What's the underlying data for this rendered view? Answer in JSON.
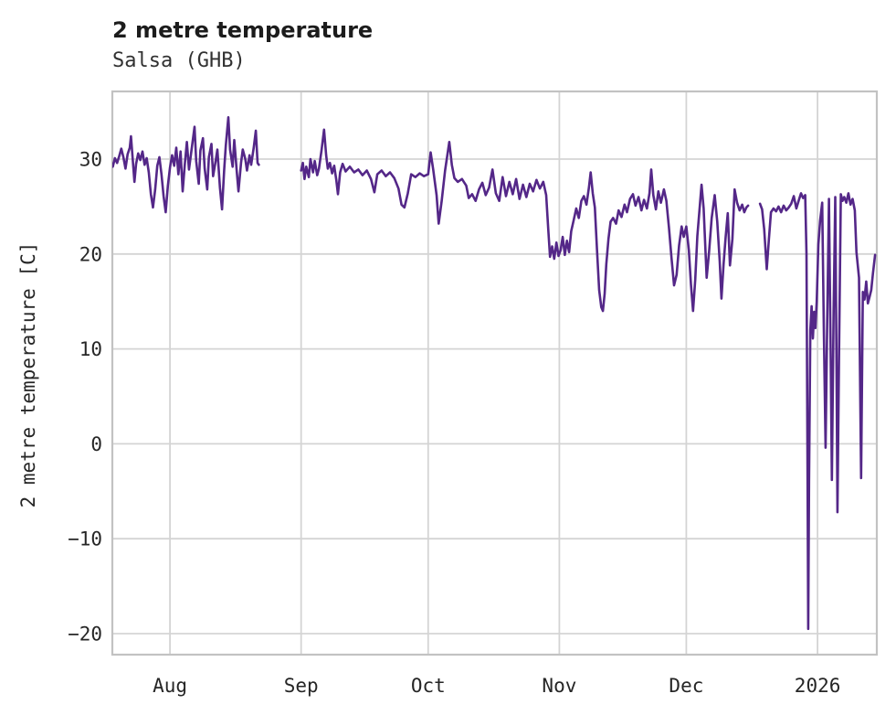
{
  "chart_data": {
    "type": "line",
    "title": "2 metre temperature",
    "subtitle": "Salsa (GHB)",
    "xlabel": "",
    "ylabel": "2 metre temperature [C]",
    "grid": true,
    "legend": "none",
    "line_color": "#542788",
    "x_axis": {
      "unit": "days since 2025-07-18",
      "start": "2025-07-18",
      "end": "2026-01-15",
      "day_span": [
        0,
        181
      ]
    },
    "ylim": [
      -22.2,
      37.1
    ],
    "y_ticks": [
      30,
      20,
      10,
      0,
      -10,
      -20
    ],
    "x_ticks": [
      {
        "label": "Aug",
        "day": 14
      },
      {
        "label": "Sep",
        "day": 45
      },
      {
        "label": "Oct",
        "day": 75
      },
      {
        "label": "Nov",
        "day": 106
      },
      {
        "label": "Dec",
        "day": 136
      },
      {
        "label": "2026",
        "day": 167
      }
    ],
    "gaps_note": "null temperature = missing data segment",
    "series": [
      {
        "name": "2 metre temperature",
        "points": [
          [
            0,
            29.8
          ],
          [
            0.5,
            29.2
          ],
          [
            1,
            30.1
          ],
          [
            1.5,
            29.6
          ],
          [
            2,
            30.3
          ],
          [
            2.5,
            31.1
          ],
          [
            3,
            30.2
          ],
          [
            3.5,
            29.0
          ],
          [
            4,
            30.5
          ],
          [
            4.5,
            31.2
          ],
          [
            4.8,
            32.4
          ],
          [
            5.2,
            30.0
          ],
          [
            5.6,
            27.6
          ],
          [
            6,
            29.5
          ],
          [
            6.5,
            30.6
          ],
          [
            7,
            29.9
          ],
          [
            7.5,
            30.8
          ],
          [
            8,
            29.4
          ],
          [
            8.5,
            30.1
          ],
          [
            9,
            28.6
          ],
          [
            9.5,
            26.3
          ],
          [
            10,
            24.9
          ],
          [
            10.5,
            26.8
          ],
          [
            11,
            29.3
          ],
          [
            11.5,
            30.2
          ],
          [
            12,
            28.4
          ],
          [
            12.5,
            26.1
          ],
          [
            13,
            24.4
          ],
          [
            13.5,
            27.2
          ],
          [
            14,
            29.1
          ],
          [
            14.5,
            30.4
          ],
          [
            15,
            29.3
          ],
          [
            15.5,
            31.2
          ],
          [
            16,
            28.4
          ],
          [
            16.5,
            30.8
          ],
          [
            17,
            26.6
          ],
          [
            17.5,
            29.4
          ],
          [
            18,
            31.8
          ],
          [
            18.5,
            28.9
          ],
          [
            19,
            30.6
          ],
          [
            19.8,
            33.4
          ],
          [
            20.2,
            29.8
          ],
          [
            20.8,
            27.4
          ],
          [
            21.2,
            30.9
          ],
          [
            21.8,
            32.2
          ],
          [
            22.2,
            29.0
          ],
          [
            22.8,
            26.8
          ],
          [
            23.2,
            30.2
          ],
          [
            23.8,
            31.6
          ],
          [
            24.2,
            28.2
          ],
          [
            24.8,
            29.8
          ],
          [
            25.2,
            31.0
          ],
          [
            25.8,
            27.0
          ],
          [
            26.3,
            24.7
          ],
          [
            26.8,
            28.8
          ],
          [
            27.2,
            31.4
          ],
          [
            27.8,
            34.4
          ],
          [
            28.2,
            31.0
          ],
          [
            28.8,
            29.2
          ],
          [
            29.2,
            32.0
          ],
          [
            29.8,
            28.6
          ],
          [
            30.2,
            26.6
          ],
          [
            30.8,
            29.6
          ],
          [
            31.2,
            31.0
          ],
          [
            31.8,
            30.0
          ],
          [
            32.2,
            28.8
          ],
          [
            32.8,
            30.4
          ],
          [
            33.2,
            29.4
          ],
          [
            33.8,
            31.2
          ],
          [
            34.3,
            33.0
          ],
          [
            34.7,
            29.6
          ],
          [
            35,
            29.4
          ],
          [
            36,
            null
          ],
          [
            45,
            28.8
          ],
          [
            45.4,
            29.6
          ],
          [
            45.8,
            27.9
          ],
          [
            46.2,
            29.2
          ],
          [
            46.8,
            28.1
          ],
          [
            47.2,
            30.0
          ],
          [
            47.8,
            28.6
          ],
          [
            48.2,
            29.8
          ],
          [
            48.8,
            28.3
          ],
          [
            49.2,
            29.0
          ],
          [
            49.8,
            30.9
          ],
          [
            50.4,
            33.1
          ],
          [
            50.9,
            30.4
          ],
          [
            51.3,
            29.0
          ],
          [
            51.8,
            29.6
          ],
          [
            52.3,
            28.5
          ],
          [
            52.8,
            29.3
          ],
          [
            53.3,
            27.8
          ],
          [
            53.7,
            26.3
          ],
          [
            54.2,
            28.6
          ],
          [
            54.8,
            29.5
          ],
          [
            55.5,
            28.7
          ],
          [
            56.5,
            29.2
          ],
          [
            57.5,
            28.6
          ],
          [
            58.5,
            28.9
          ],
          [
            59.5,
            28.3
          ],
          [
            60.5,
            28.8
          ],
          [
            61.5,
            27.9
          ],
          [
            62.3,
            26.5
          ],
          [
            63,
            28.4
          ],
          [
            64,
            28.8
          ],
          [
            65,
            28.2
          ],
          [
            66,
            28.6
          ],
          [
            67,
            28.0
          ],
          [
            68,
            26.9
          ],
          [
            68.7,
            25.2
          ],
          [
            69.4,
            24.9
          ],
          [
            70.2,
            26.4
          ],
          [
            71,
            28.4
          ],
          [
            72,
            28.1
          ],
          [
            73,
            28.5
          ],
          [
            74,
            28.2
          ],
          [
            75,
            28.4
          ],
          [
            75.6,
            30.7
          ],
          [
            76.2,
            28.9
          ],
          [
            77,
            26.2
          ],
          [
            77.5,
            23.2
          ],
          [
            78.2,
            25.6
          ],
          [
            79,
            28.8
          ],
          [
            80,
            31.8
          ],
          [
            80.6,
            29.4
          ],
          [
            81.2,
            28.0
          ],
          [
            82,
            27.6
          ],
          [
            83,
            27.9
          ],
          [
            84,
            27.2
          ],
          [
            84.6,
            25.9
          ],
          [
            85.4,
            26.3
          ],
          [
            86.2,
            25.6
          ],
          [
            87,
            26.8
          ],
          [
            87.8,
            27.5
          ],
          [
            88.6,
            26.2
          ],
          [
            89.4,
            27.0
          ],
          [
            90.2,
            28.9
          ],
          [
            91,
            26.4
          ],
          [
            91.8,
            25.6
          ],
          [
            92.6,
            28.1
          ],
          [
            93.4,
            26.1
          ],
          [
            94.2,
            27.6
          ],
          [
            95,
            26.3
          ],
          [
            95.8,
            27.9
          ],
          [
            96.6,
            25.8
          ],
          [
            97.4,
            27.3
          ],
          [
            98.2,
            26.0
          ],
          [
            99,
            27.4
          ],
          [
            99.8,
            26.6
          ],
          [
            100.6,
            27.8
          ],
          [
            101.4,
            26.9
          ],
          [
            102.2,
            27.6
          ],
          [
            102.9,
            26.2
          ],
          [
            103.4,
            22.4
          ],
          [
            103.8,
            19.7
          ],
          [
            104.3,
            20.8
          ],
          [
            104.8,
            19.5
          ],
          [
            105.3,
            21.2
          ],
          [
            105.8,
            19.8
          ],
          [
            106.3,
            20.4
          ],
          [
            106.8,
            21.8
          ],
          [
            107.3,
            19.9
          ],
          [
            107.8,
            21.4
          ],
          [
            108.3,
            20.2
          ],
          [
            108.8,
            22.4
          ],
          [
            109.4,
            23.6
          ],
          [
            110,
            24.8
          ],
          [
            110.6,
            23.8
          ],
          [
            111.2,
            25.6
          ],
          [
            111.8,
            26.1
          ],
          [
            112.4,
            25.2
          ],
          [
            113,
            27.0
          ],
          [
            113.4,
            28.6
          ],
          [
            113.9,
            26.4
          ],
          [
            114.4,
            24.9
          ],
          [
            114.9,
            20.5
          ],
          [
            115.4,
            16.2
          ],
          [
            115.9,
            14.4
          ],
          [
            116.3,
            14.0
          ],
          [
            116.7,
            15.8
          ],
          [
            117.1,
            18.9
          ],
          [
            117.6,
            21.6
          ],
          [
            118.1,
            23.4
          ],
          [
            118.7,
            23.8
          ],
          [
            119.4,
            23.2
          ],
          [
            120,
            24.6
          ],
          [
            120.7,
            23.9
          ],
          [
            121.4,
            25.2
          ],
          [
            122,
            24.4
          ],
          [
            122.7,
            25.8
          ],
          [
            123.4,
            26.3
          ],
          [
            124,
            25.1
          ],
          [
            124.7,
            26.0
          ],
          [
            125.4,
            24.6
          ],
          [
            126,
            25.7
          ],
          [
            126.7,
            24.8
          ],
          [
            127.3,
            26.4
          ],
          [
            127.7,
            28.9
          ],
          [
            128.2,
            26.2
          ],
          [
            128.8,
            24.7
          ],
          [
            129.4,
            26.6
          ],
          [
            130,
            25.4
          ],
          [
            130.7,
            26.8
          ],
          [
            131.3,
            25.6
          ],
          [
            131.9,
            22.8
          ],
          [
            132.5,
            19.6
          ],
          [
            133.1,
            16.7
          ],
          [
            133.7,
            17.8
          ],
          [
            134.3,
            20.9
          ],
          [
            134.9,
            22.9
          ],
          [
            135.4,
            21.8
          ],
          [
            136,
            22.9
          ],
          [
            136.6,
            20.4
          ],
          [
            137.1,
            16.8
          ],
          [
            137.6,
            14.0
          ],
          [
            138.1,
            17.3
          ],
          [
            138.6,
            21.9
          ],
          [
            139.1,
            24.6
          ],
          [
            139.6,
            27.3
          ],
          [
            140.1,
            24.8
          ],
          [
            140.8,
            17.5
          ],
          [
            141.4,
            20.3
          ],
          [
            142,
            23.8
          ],
          [
            142.7,
            26.2
          ],
          [
            143.3,
            23.4
          ],
          [
            143.9,
            19.2
          ],
          [
            144.3,
            15.3
          ],
          [
            144.8,
            18.9
          ],
          [
            145.3,
            21.8
          ],
          [
            145.8,
            24.3
          ],
          [
            146.3,
            18.8
          ],
          [
            146.9,
            21.6
          ],
          [
            147.4,
            26.8
          ],
          [
            148,
            25.4
          ],
          [
            148.6,
            24.6
          ],
          [
            149.2,
            25.2
          ],
          [
            149.7,
            24.4
          ],
          [
            150.2,
            24.9
          ],
          [
            150.6,
            25.1
          ],
          [
            151.5,
            null
          ],
          [
            153.4,
            25.3
          ],
          [
            153.9,
            24.7
          ],
          [
            154.4,
            22.6
          ],
          [
            155,
            18.4
          ],
          [
            155.5,
            21.5
          ],
          [
            156,
            24.4
          ],
          [
            156.6,
            24.8
          ],
          [
            157.2,
            24.5
          ],
          [
            157.8,
            25.0
          ],
          [
            158.4,
            24.4
          ],
          [
            159,
            25.1
          ],
          [
            159.6,
            24.6
          ],
          [
            160.2,
            24.9
          ],
          [
            160.8,
            25.3
          ],
          [
            161.4,
            26.1
          ],
          [
            162,
            24.8
          ],
          [
            162.6,
            25.7
          ],
          [
            163.1,
            26.4
          ],
          [
            163.6,
            25.9
          ],
          [
            164.1,
            26.2
          ],
          [
            164.4,
            20.0
          ],
          [
            164.6,
            0.0
          ],
          [
            164.8,
            -19.5
          ],
          [
            165,
            -4.0
          ],
          [
            165.3,
            12.0
          ],
          [
            165.6,
            14.5
          ],
          [
            165.9,
            11.1
          ],
          [
            166.2,
            13.9
          ],
          [
            166.5,
            12.2
          ],
          [
            166.8,
            15.0
          ],
          [
            167.2,
            21.0
          ],
          [
            167.6,
            23.5
          ],
          [
            168.1,
            25.4
          ],
          [
            168.5,
            12.0
          ],
          [
            168.9,
            -0.4
          ],
          [
            169.3,
            13.0
          ],
          [
            169.7,
            25.8
          ],
          [
            170.1,
            10.0
          ],
          [
            170.4,
            -3.8
          ],
          [
            170.8,
            14.0
          ],
          [
            171.2,
            26.0
          ],
          [
            171.5,
            8.0
          ],
          [
            171.7,
            -7.2
          ],
          [
            172.1,
            10.0
          ],
          [
            172.5,
            26.3
          ],
          [
            172.9,
            25.6
          ],
          [
            173.3,
            26.0
          ],
          [
            173.8,
            25.4
          ],
          [
            174.3,
            26.4
          ],
          [
            174.8,
            25.2
          ],
          [
            175.3,
            25.8
          ],
          [
            175.8,
            24.6
          ],
          [
            176.2,
            20.2
          ],
          [
            176.8,
            17.5
          ],
          [
            177.3,
            -3.6
          ],
          [
            177.7,
            16.0
          ],
          [
            178.1,
            15.2
          ],
          [
            178.5,
            17.1
          ],
          [
            178.9,
            14.8
          ],
          [
            179.3,
            15.5
          ],
          [
            179.7,
            16.2
          ],
          [
            180.1,
            18.0
          ],
          [
            180.6,
            19.9
          ]
        ]
      }
    ]
  },
  "colors": {
    "background": "#ffffff",
    "line": "#542788",
    "grid": "#d4d4d4",
    "frame": "#c2c2c2",
    "title_text": "#1c1c1c",
    "tick_text": "#262626"
  }
}
